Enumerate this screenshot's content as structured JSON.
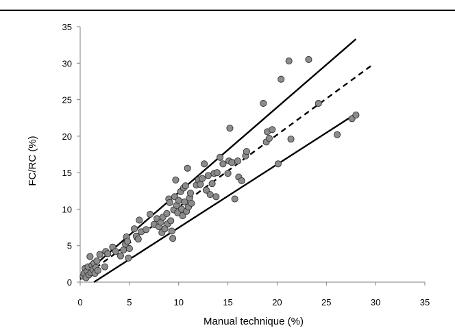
{
  "chart_data": {
    "type": "scatter",
    "title": "",
    "xlabel": "Manual technique (%)",
    "ylabel": "FC/RC (%)",
    "xlim": [
      0,
      35
    ],
    "ylim": [
      0,
      35
    ],
    "xticks": [
      0,
      5,
      10,
      15,
      20,
      25,
      30,
      35
    ],
    "yticks": [
      0,
      5,
      10,
      15,
      20,
      25,
      30,
      35
    ],
    "grid": false,
    "legend": "none",
    "marker_color": "#8c8c8c",
    "points": [
      [
        0.3,
        0.8
      ],
      [
        0.4,
        1.2
      ],
      [
        0.5,
        1.9
      ],
      [
        0.6,
        0.6
      ],
      [
        0.7,
        1.5
      ],
      [
        0.8,
        2.1
      ],
      [
        0.9,
        1.0
      ],
      [
        1.0,
        3.5
      ],
      [
        1.1,
        1.3
      ],
      [
        1.2,
        2.3
      ],
      [
        1.3,
        1.7
      ],
      [
        1.4,
        2.6
      ],
      [
        1.5,
        1.2
      ],
      [
        1.6,
        2.0
      ],
      [
        1.7,
        2.9
      ],
      [
        1.8,
        1.6
      ],
      [
        2.0,
        3.8
      ],
      [
        2.5,
        2.1
      ],
      [
        2.6,
        4.2
      ],
      [
        2.8,
        3.9
      ],
      [
        3.3,
        4.8
      ],
      [
        3.6,
        4.2
      ],
      [
        4.1,
        3.6
      ],
      [
        4.4,
        4.4
      ],
      [
        4.6,
        5.2
      ],
      [
        4.7,
        6.2
      ],
      [
        4.8,
        5.6
      ],
      [
        4.9,
        3.3
      ],
      [
        5.0,
        4.6
      ],
      [
        5.5,
        7.3
      ],
      [
        5.7,
        6.3
      ],
      [
        5.9,
        5.9
      ],
      [
        6.0,
        8.5
      ],
      [
        6.2,
        6.9
      ],
      [
        6.7,
        7.2
      ],
      [
        7.1,
        9.3
      ],
      [
        7.5,
        7.9
      ],
      [
        7.8,
        8.7
      ],
      [
        8.0,
        7.6
      ],
      [
        8.2,
        8.2
      ],
      [
        8.3,
        6.8
      ],
      [
        8.4,
        8.9
      ],
      [
        8.6,
        7.3
      ],
      [
        8.8,
        9.4
      ],
      [
        8.9,
        8.0
      ],
      [
        9.0,
        11.4
      ],
      [
        9.1,
        10.9
      ],
      [
        9.2,
        8.4
      ],
      [
        9.3,
        7.0
      ],
      [
        9.4,
        6.0
      ],
      [
        9.5,
        9.9
      ],
      [
        9.6,
        11.7
      ],
      [
        9.7,
        14.0
      ],
      [
        9.8,
        10.5
      ],
      [
        9.9,
        9.5
      ],
      [
        10.0,
        11.2
      ],
      [
        10.2,
        12.4
      ],
      [
        10.3,
        10.0
      ],
      [
        10.4,
        9.1
      ],
      [
        10.5,
        12.9
      ],
      [
        10.6,
        11.0
      ],
      [
        10.7,
        13.2
      ],
      [
        10.8,
        9.7
      ],
      [
        10.9,
        15.6
      ],
      [
        11.0,
        10.3
      ],
      [
        11.1,
        11.5
      ],
      [
        11.2,
        12.2
      ],
      [
        11.3,
        10.8
      ],
      [
        11.8,
        13.3
      ],
      [
        12.0,
        14.0
      ],
      [
        12.2,
        13.4
      ],
      [
        12.4,
        14.2
      ],
      [
        12.6,
        16.2
      ],
      [
        12.8,
        12.6
      ],
      [
        13.0,
        14.6
      ],
      [
        13.2,
        12.0
      ],
      [
        13.4,
        13.5
      ],
      [
        13.6,
        14.9
      ],
      [
        13.8,
        11.7
      ],
      [
        13.9,
        15.0
      ],
      [
        14.2,
        17.1
      ],
      [
        14.5,
        16.2
      ],
      [
        15.0,
        14.9
      ],
      [
        15.1,
        16.6
      ],
      [
        15.2,
        21.1
      ],
      [
        15.4,
        16.4
      ],
      [
        15.7,
        11.4
      ],
      [
        16.0,
        16.6
      ],
      [
        16.1,
        14.4
      ],
      [
        16.4,
        13.9
      ],
      [
        16.8,
        17.3
      ],
      [
        16.9,
        17.9
      ],
      [
        18.6,
        24.5
      ],
      [
        18.9,
        19.2
      ],
      [
        19.0,
        20.6
      ],
      [
        19.2,
        19.7
      ],
      [
        19.5,
        20.9
      ],
      [
        20.1,
        16.2
      ],
      [
        20.4,
        27.8
      ],
      [
        21.2,
        30.3
      ],
      [
        21.4,
        19.6
      ],
      [
        23.2,
        30.5
      ],
      [
        24.2,
        24.5
      ],
      [
        26.1,
        20.2
      ],
      [
        27.6,
        22.4
      ],
      [
        28.0,
        22.9
      ]
    ],
    "lines": [
      {
        "style": "solid",
        "x": [
          0.0,
          28.0
        ],
        "y": [
          0.6,
          33.3
        ]
      },
      {
        "style": "dashed",
        "x": [
          0.0,
          29.6
        ],
        "y": [
          0.4,
          29.7
        ]
      },
      {
        "style": "solid",
        "x": [
          1.4,
          27.8
        ],
        "y": [
          0.0,
          22.9
        ]
      }
    ]
  }
}
